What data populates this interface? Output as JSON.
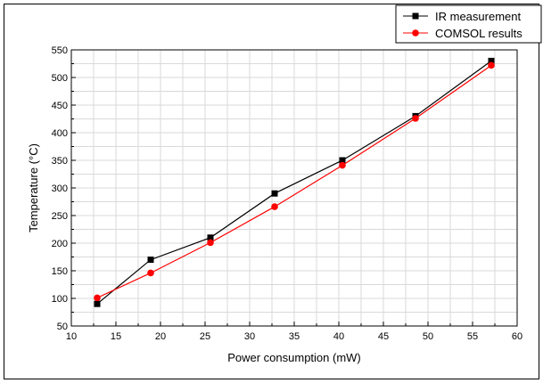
{
  "chart_data": {
    "type": "line",
    "title": "",
    "xlabel": "Power consumption (mW)",
    "ylabel": "Temperature (°C)",
    "xlim": [
      10,
      60
    ],
    "ylim": [
      50,
      550
    ],
    "xticks": [
      10,
      15,
      20,
      25,
      30,
      35,
      40,
      45,
      50,
      55,
      60
    ],
    "yticks": [
      50,
      100,
      150,
      200,
      250,
      300,
      350,
      400,
      450,
      500,
      550
    ],
    "grid": true,
    "legend_position": "top-right",
    "series": [
      {
        "name": "IR measurement",
        "color": "#000000",
        "marker": "square",
        "x": [
          12.9,
          18.9,
          25.6,
          32.8,
          40.4,
          48.6,
          57.1
        ],
        "y": [
          90,
          170,
          210,
          290,
          350,
          430,
          530
        ]
      },
      {
        "name": "COMSOL results",
        "color": "#ff0000",
        "marker": "circle",
        "x": [
          12.9,
          18.9,
          25.6,
          32.8,
          40.4,
          48.6,
          57.1
        ],
        "y": [
          101,
          146,
          201,
          266,
          341,
          426,
          522
        ]
      }
    ]
  }
}
